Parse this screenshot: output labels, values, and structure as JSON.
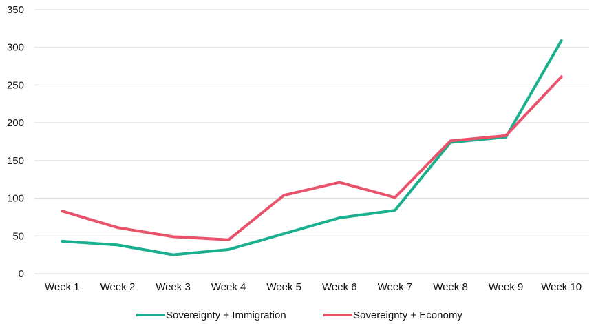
{
  "chart_data": {
    "type": "line",
    "categories": [
      "Week 1",
      "Week 2",
      "Week 3",
      "Week 4",
      "Week 5",
      "Week 6",
      "Week 7",
      "Week 8",
      "Week 9",
      "Week 10"
    ],
    "series": [
      {
        "name": "Sovereignty + Immigration",
        "color": "#1aaf8e",
        "values": [
          43,
          38,
          25,
          32,
          53,
          74,
          84,
          174,
          181,
          309
        ]
      },
      {
        "name": "Sovereignty + Economy",
        "color": "#e8536b",
        "values": [
          83,
          61,
          49,
          45,
          104,
          121,
          101,
          176,
          183,
          261
        ]
      }
    ],
    "ylim": [
      0,
      350
    ],
    "yticks": [
      0,
      50,
      100,
      150,
      200,
      250,
      300,
      350
    ],
    "grid": true,
    "legend": "bottom"
  }
}
